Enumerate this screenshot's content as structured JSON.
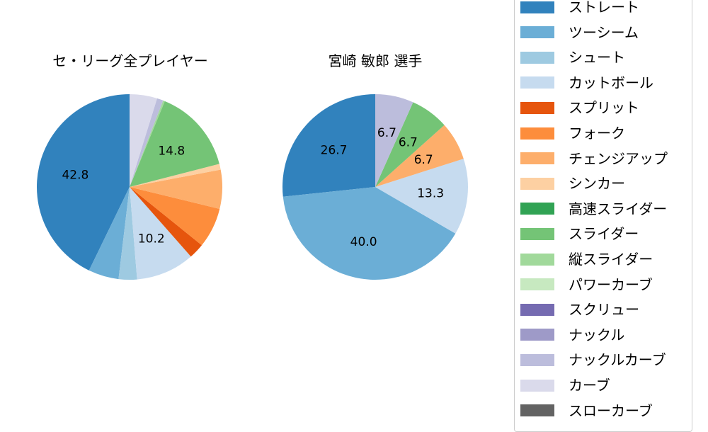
{
  "chart_data": [
    {
      "type": "pie",
      "title": "セ・リーグ全プレイヤー",
      "categories": [
        "ストレート",
        "ツーシーム",
        "シュート",
        "カットボール",
        "スプリット",
        "フォーク",
        "チェンジアップ",
        "シンカー",
        "スライダー",
        "縦スライダー",
        "ナックルカーブ",
        "カーブ"
      ],
      "values": [
        42.8,
        5.3,
        3.2,
        10.2,
        2.7,
        7.0,
        6.8,
        1.0,
        14.8,
        0.3,
        1.1,
        4.8
      ],
      "data_labels": [
        "42.8",
        "",
        "",
        "10.2",
        "",
        "",
        "",
        "",
        "14.8",
        "",
        "",
        ""
      ],
      "start_angle": 90,
      "direction": "counterclockwise"
    },
    {
      "type": "pie",
      "title": "宮崎 敏郎  選手",
      "categories": [
        "ストレート",
        "ツーシーム",
        "カットボール",
        "チェンジアップ",
        "スライダー",
        "ナックルカーブ"
      ],
      "values": [
        26.7,
        40.0,
        13.3,
        6.7,
        6.7,
        6.7
      ],
      "data_labels": [
        "26.7",
        "40.0",
        "13.3",
        "6.7",
        "6.7",
        "6.7"
      ],
      "start_angle": 90,
      "direction": "counterclockwise"
    }
  ],
  "titles": {
    "left": "セ・リーグ全プレイヤー",
    "right": "宮崎 敏郎  選手"
  },
  "legend": {
    "items": [
      {
        "label": "ストレート",
        "color": "#3182bd"
      },
      {
        "label": "ツーシーム",
        "color": "#6baed6"
      },
      {
        "label": "シュート",
        "color": "#9ecae1"
      },
      {
        "label": "カットボール",
        "color": "#c6dbef"
      },
      {
        "label": "スプリット",
        "color": "#e6550d"
      },
      {
        "label": "フォーク",
        "color": "#fd8d3c"
      },
      {
        "label": "チェンジアップ",
        "color": "#fdae6b"
      },
      {
        "label": "シンカー",
        "color": "#fdd0a2"
      },
      {
        "label": "高速スライダー",
        "color": "#31a354"
      },
      {
        "label": "スライダー",
        "color": "#74c476"
      },
      {
        "label": "縦スライダー",
        "color": "#a1d99b"
      },
      {
        "label": "パワーカーブ",
        "color": "#c7e9c0"
      },
      {
        "label": "スクリュー",
        "color": "#756bb1"
      },
      {
        "label": "ナックル",
        "color": "#9e9ac8"
      },
      {
        "label": "ナックルカーブ",
        "color": "#bcbddc"
      },
      {
        "label": "カーブ",
        "color": "#dadaeb"
      },
      {
        "label": "スローカーブ",
        "color": "#636363"
      }
    ]
  }
}
